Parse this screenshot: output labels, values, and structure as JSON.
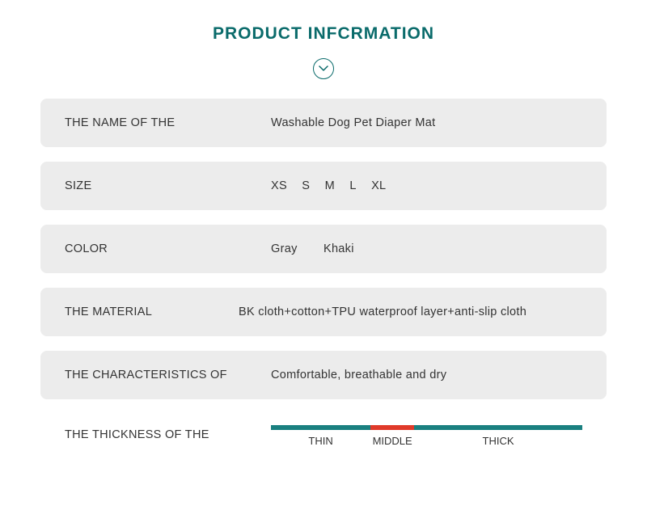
{
  "title": "PRODUCT INFCRMATION",
  "colors": {
    "accent": "#0a6b6b",
    "rowBg": "#ececec",
    "text": "#333333",
    "barTeal": "#1a8080",
    "barRed": "#e03a2a",
    "pageBg": "#ffffff"
  },
  "rows": {
    "name": {
      "label": "THE NAME OF THE",
      "value": "Washable Dog Pet Diaper Mat"
    },
    "size": {
      "label": "SIZE",
      "values": [
        "XS",
        "S",
        "M",
        "L",
        "XL"
      ]
    },
    "color": {
      "label": "COLOR",
      "values": [
        "Gray",
        "Khaki"
      ]
    },
    "material": {
      "label": "THE MATERIAL",
      "value": "BK cloth+cotton+TPU waterproof layer+anti-slip cloth"
    },
    "characteristics": {
      "label": "THE CHARACTERISTICS OF",
      "value": "Comfortable, breathable and dry"
    }
  },
  "thickness": {
    "label": "THE THICKNESS OF THE",
    "segments": [
      {
        "widthPct": 32,
        "color": "#1a8080",
        "tick": "THIN"
      },
      {
        "widthPct": 14,
        "color": "#e03a2a",
        "tick": "MIDDLE"
      },
      {
        "widthPct": 54,
        "color": "#1a8080",
        "tick": "THICK"
      }
    ]
  }
}
